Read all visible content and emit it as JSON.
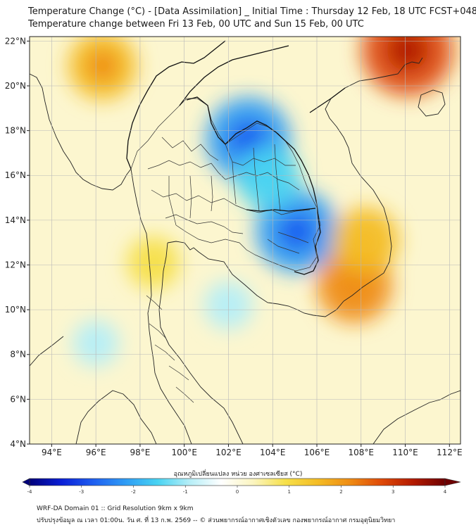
{
  "header": {
    "title_line1": "Temperature Change (°C) - [Data Assimilation] _ Initial Time : Thursday 12 Feb, 18 UTC FCST+048",
    "title_line2": "Temperature change between Fri 13 Feb, 00 UTC and Sun 15 Feb, 00 UTC"
  },
  "map": {
    "lat_labels": [
      "22°N",
      "20°N",
      "18°N",
      "16°N",
      "14°N",
      "12°N",
      "10°N",
      "8°N",
      "6°N",
      "4°N"
    ],
    "lat_values": [
      22,
      20,
      18,
      16,
      14,
      12,
      10,
      8,
      6,
      4
    ],
    "lon_labels": [
      "94°E",
      "96°E",
      "98°E",
      "100°E",
      "102°E",
      "104°E",
      "106°E",
      "108°E",
      "110°E",
      "112°E"
    ],
    "lon_values": [
      94,
      96,
      98,
      100,
      102,
      104,
      106,
      108,
      110,
      112
    ],
    "lon_range": [
      93,
      112.5
    ],
    "lat_range": [
      4,
      22.2
    ],
    "anomalies": [
      {
        "name": "cold-northeast-thailand",
        "lon": 102.9,
        "lat": 17.6,
        "value": -2.4
      },
      {
        "name": "cold-cambodia",
        "lon": 105.1,
        "lat": 13.5,
        "value": -2.3
      },
      {
        "name": "cold-laos",
        "lon": 103.8,
        "lat": 15.9,
        "value": -1.5
      },
      {
        "name": "cold-gulf-thailand",
        "lon": 102.0,
        "lat": 10.2,
        "value": -0.8
      },
      {
        "name": "cold-andaman-sea",
        "lon": 96.0,
        "lat": 8.5,
        "value": -0.7
      },
      {
        "name": "warm-myanmar",
        "lon": 96.3,
        "lat": 20.9,
        "value": 1.7
      },
      {
        "name": "warm-south-china",
        "lon": 110.1,
        "lat": 21.6,
        "value": 2.7
      },
      {
        "name": "warm-vietnam-coast",
        "lon": 107.7,
        "lat": 11.1,
        "value": 2.0
      },
      {
        "name": "warm-central-vietnam",
        "lon": 108.2,
        "lat": 13.1,
        "value": 1.6
      },
      {
        "name": "warm-west-thailand",
        "lon": 98.6,
        "lat": 12.1,
        "value": 1.0
      }
    ]
  },
  "colorbar": {
    "title": "อุณหภูมิเปลี่ยนแปลง หน่วย องศาเซลเซียส (°C)",
    "min": -4,
    "max": 4,
    "tick_labels": [
      "-4",
      "-3",
      "-2",
      "-1",
      "0",
      "1",
      "2",
      "3",
      "4"
    ],
    "tick_values": [
      -4,
      -3,
      -2,
      -1,
      0,
      1,
      2,
      3,
      4
    ],
    "colors": [
      "#00007a",
      "#0a1fd6",
      "#1f5ff0",
      "#2f9cf5",
      "#48d3f2",
      "#b5eef7",
      "#ffffff",
      "#fbf5c0",
      "#f6e04a",
      "#f4bd25",
      "#ef8d14",
      "#df4a08",
      "#b31a00",
      "#6e0000"
    ]
  },
  "footer": {
    "line1": "WRF-DA Domain 01 :: Grid Resolution 9km x 9km",
    "line2": "ปรับปรุงข้อมูล ณ เวลา 01:00น. วัน ศ. ที่ 13 ก.พ. 2569 -- © ส่วนพยากรณ์อากาศเชิงตัวเลข กองพยากรณ์อากาศ กรมอุตุนิยมวิทยา"
  }
}
